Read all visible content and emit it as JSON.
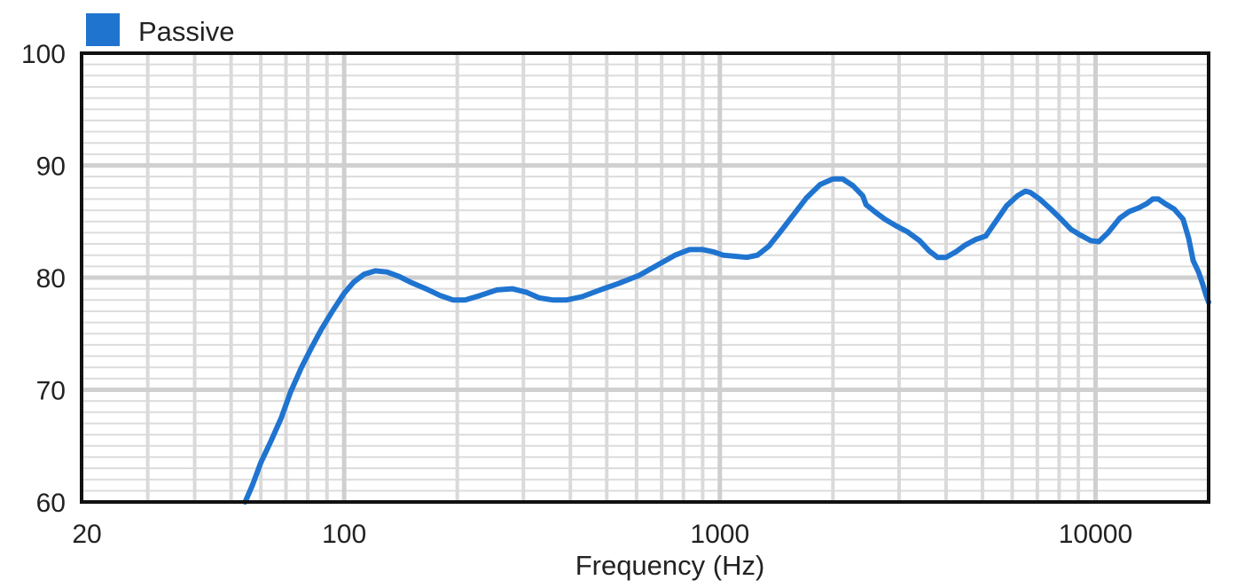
{
  "chart_data": {
    "type": "line",
    "xscale": "log",
    "xlim": [
      20,
      20000
    ],
    "ylim": [
      60,
      100
    ],
    "xlabel": "Frequency (Hz)",
    "ylabel": "",
    "x_ticks": [
      20,
      100,
      1000,
      10000
    ],
    "x_tick_labels": [
      "20",
      "100",
      "1000",
      "10000"
    ],
    "y_ticks": [
      60,
      70,
      80,
      90,
      100
    ],
    "y_tick_labels": [
      "60",
      "70",
      "80",
      "90",
      "100"
    ],
    "grid": true,
    "legend": "top-left",
    "series": [
      {
        "name": "Passive",
        "color": "#1f74d0",
        "points": [
          [
            54.5,
            60
          ],
          [
            57,
            61.5
          ],
          [
            60,
            63.5
          ],
          [
            64,
            65.5
          ],
          [
            68,
            67.5
          ],
          [
            72,
            69.8
          ],
          [
            77,
            72
          ],
          [
            82,
            73.8
          ],
          [
            87,
            75.4
          ],
          [
            93,
            77
          ],
          [
            100,
            78.6
          ],
          [
            106,
            79.6
          ],
          [
            113,
            80.3
          ],
          [
            121,
            80.6
          ],
          [
            130,
            80.5
          ],
          [
            140,
            80.1
          ],
          [
            150,
            79.6
          ],
          [
            165,
            79
          ],
          [
            180,
            78.4
          ],
          [
            195,
            78
          ],
          [
            210,
            78
          ],
          [
            230,
            78.4
          ],
          [
            255,
            78.9
          ],
          [
            280,
            79
          ],
          [
            305,
            78.7
          ],
          [
            330,
            78.2
          ],
          [
            360,
            78
          ],
          [
            390,
            78
          ],
          [
            430,
            78.3
          ],
          [
            480,
            78.9
          ],
          [
            540,
            79.5
          ],
          [
            610,
            80.2
          ],
          [
            690,
            81.2
          ],
          [
            760,
            82
          ],
          [
            830,
            82.5
          ],
          [
            900,
            82.5
          ],
          [
            960,
            82.3
          ],
          [
            1020,
            82
          ],
          [
            1100,
            81.9
          ],
          [
            1180,
            81.8
          ],
          [
            1260,
            82
          ],
          [
            1350,
            82.8
          ],
          [
            1450,
            84.1
          ],
          [
            1570,
            85.6
          ],
          [
            1700,
            87.1
          ],
          [
            1850,
            88.3
          ],
          [
            2000,
            88.8
          ],
          [
            2120,
            88.8
          ],
          [
            2260,
            88.2
          ],
          [
            2400,
            87.3
          ],
          [
            2450,
            86.5
          ],
          [
            2600,
            85.8
          ],
          [
            2750,
            85.2
          ],
          [
            2950,
            84.6
          ],
          [
            3150,
            84.1
          ],
          [
            3400,
            83.3
          ],
          [
            3600,
            82.4
          ],
          [
            3800,
            81.8
          ],
          [
            4000,
            81.8
          ],
          [
            4250,
            82.3
          ],
          [
            4500,
            82.9
          ],
          [
            4800,
            83.4
          ],
          [
            5100,
            83.7
          ],
          [
            5400,
            84.9
          ],
          [
            5800,
            86.4
          ],
          [
            6200,
            87.3
          ],
          [
            6500,
            87.7
          ],
          [
            6700,
            87.6
          ],
          [
            7100,
            87
          ],
          [
            7600,
            86.1
          ],
          [
            8100,
            85.2
          ],
          [
            8600,
            84.3
          ],
          [
            9100,
            83.8
          ],
          [
            9700,
            83.3
          ],
          [
            10200,
            83.2
          ],
          [
            10800,
            84
          ],
          [
            11600,
            85.3
          ],
          [
            12300,
            85.9
          ],
          [
            13000,
            86.2
          ],
          [
            13700,
            86.6
          ],
          [
            14200,
            87
          ],
          [
            14700,
            87
          ],
          [
            15300,
            86.6
          ],
          [
            16200,
            86.1
          ],
          [
            17100,
            85.2
          ],
          [
            17700,
            83.5
          ],
          [
            18200,
            81.5
          ],
          [
            18800,
            80.5
          ],
          [
            19300,
            79.4
          ],
          [
            19700,
            78.4
          ],
          [
            20000,
            77.8
          ]
        ]
      }
    ]
  }
}
